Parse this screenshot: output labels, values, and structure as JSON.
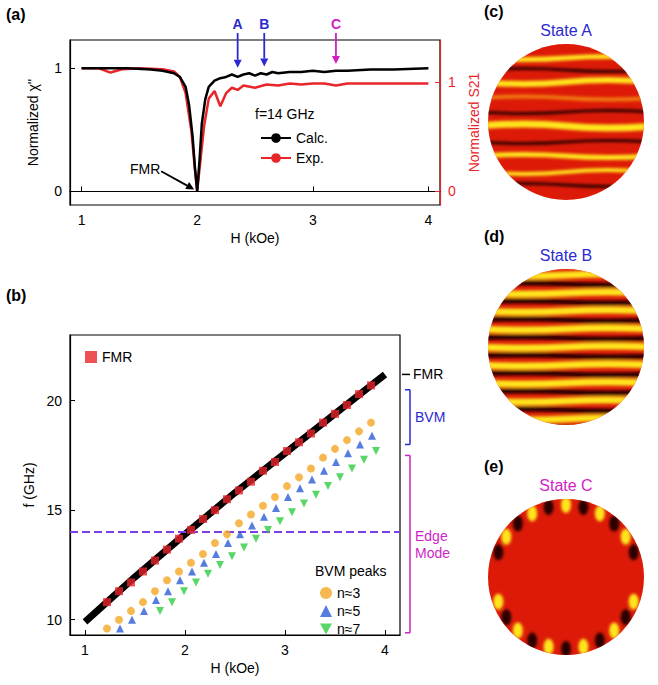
{
  "chart_data": [
    {
      "type": "line",
      "panel": "(a)",
      "x_label": "H (kOe)",
      "y_label": "Normalized χ''",
      "y2_label": "Normalized S21",
      "xlim": [
        0.9,
        4.1
      ],
      "xticks": [
        1,
        2,
        3,
        4
      ],
      "ylim": [
        -0.11,
        1.23
      ],
      "yticks": [
        0,
        1
      ],
      "y2lim": [
        -0.13,
        1.39
      ],
      "y2ticks": [
        0,
        1
      ],
      "legend": "inside",
      "legend_title": "f=14 GHz",
      "series": [
        {
          "name": "Calc.",
          "color": "#000000",
          "x": [
            1.0,
            1.2,
            1.4,
            1.6,
            1.7,
            1.8,
            1.85,
            1.9,
            1.93,
            1.96,
            1.98,
            2.0,
            2.02,
            2.04,
            2.07,
            2.1,
            2.15,
            2.2,
            2.25,
            2.3,
            2.35,
            2.4,
            2.45,
            2.5,
            2.55,
            2.6,
            2.65,
            2.7,
            2.8,
            2.9,
            3.0,
            3.1,
            3.2,
            3.3,
            3.5,
            3.7,
            4.0
          ],
          "values": [
            1.0,
            1.0,
            1.0,
            0.99,
            0.98,
            0.96,
            0.93,
            0.85,
            0.7,
            0.45,
            0.2,
            0.0,
            0.25,
            0.55,
            0.75,
            0.85,
            0.9,
            0.92,
            0.93,
            0.95,
            0.93,
            0.95,
            0.96,
            0.94,
            0.96,
            0.95,
            0.97,
            0.96,
            0.97,
            0.97,
            0.98,
            0.97,
            0.98,
            0.98,
            0.99,
            0.99,
            1.0
          ]
        },
        {
          "name": "Exp.",
          "color": "#e8262a",
          "axis": "y2",
          "x": [
            1.0,
            1.15,
            1.25,
            1.35,
            1.5,
            1.7,
            1.8,
            1.85,
            1.9,
            1.95,
            1.98,
            2.0,
            2.03,
            2.06,
            2.1,
            2.15,
            2.2,
            2.25,
            2.3,
            2.35,
            2.4,
            2.5,
            2.6,
            2.7,
            2.8,
            2.9,
            3.0,
            3.1,
            3.2,
            3.3,
            3.5,
            3.7,
            4.0
          ],
          "values": [
            1.13,
            1.13,
            1.09,
            1.12,
            1.13,
            1.12,
            1.1,
            1.05,
            0.9,
            0.55,
            0.2,
            0.0,
            0.3,
            0.6,
            0.85,
            0.92,
            0.78,
            0.9,
            0.95,
            0.93,
            0.97,
            0.95,
            0.98,
            0.97,
            0.99,
            0.98,
            0.99,
            0.99,
            0.97,
            0.99,
            0.99,
            0.99,
            0.99
          ]
        }
      ],
      "annotations": [
        {
          "text": "FMR",
          "x": 1.55,
          "y": 0.18,
          "arrow_to": [
            2.0,
            0.0
          ],
          "color": "#000000"
        },
        {
          "text": "A",
          "x": 2.35,
          "y": 0.98,
          "color": "#2a2ad0"
        },
        {
          "text": "B",
          "x": 2.58,
          "y": 0.99,
          "color": "#2a2ad0"
        },
        {
          "text": "C",
          "x": 3.2,
          "y": 1.01,
          "color": "#d11fc5"
        }
      ]
    },
    {
      "type": "scatter",
      "panel": "(b)",
      "x_label": "H (kOe)",
      "y_label": "f (GHz)",
      "xlim": [
        0.85,
        4.15
      ],
      "xticks": [
        1,
        2,
        3,
        4
      ],
      "ylim": [
        9.3,
        23
      ],
      "yticks": [
        10,
        15,
        20
      ],
      "legend": "inside",
      "legend_title": "BVM peaks",
      "series": [
        {
          "name": "FMR",
          "color": "#e8262a",
          "marker": "square",
          "x": [
            1.22,
            1.34,
            1.46,
            1.58,
            1.7,
            1.82,
            1.94,
            2.06,
            2.18,
            2.3,
            2.42,
            2.54,
            2.66,
            2.78,
            2.9,
            3.02,
            3.14,
            3.26,
            3.38,
            3.5,
            3.62,
            3.74,
            3.86
          ],
          "values": [
            10.8,
            11.3,
            11.7,
            12.2,
            12.7,
            13.2,
            13.7,
            14.1,
            14.6,
            15.0,
            15.5,
            15.9,
            16.3,
            16.8,
            17.2,
            17.7,
            18.1,
            18.5,
            19.0,
            19.4,
            19.8,
            20.3,
            20.7
          ]
        },
        {
          "name": "n≈3",
          "color": "#f5a623",
          "marker": "circle",
          "x": [
            1.22,
            1.34,
            1.46,
            1.58,
            1.7,
            1.82,
            1.94,
            2.06,
            2.18,
            2.3,
            2.42,
            2.54,
            2.66,
            2.78,
            2.9,
            3.02,
            3.14,
            3.26,
            3.38,
            3.5,
            3.62,
            3.74,
            3.86
          ],
          "values": [
            9.6,
            10.0,
            10.4,
            10.8,
            11.3,
            11.8,
            12.2,
            12.6,
            13.0,
            13.5,
            13.9,
            14.4,
            14.8,
            15.2,
            15.6,
            16.1,
            16.5,
            16.9,
            17.4,
            17.8,
            18.2,
            18.6,
            19.0
          ]
        },
        {
          "name": "n≈5",
          "color": "#2a5bd7",
          "marker": "triangle",
          "x": [
            1.35,
            1.47,
            1.59,
            1.71,
            1.83,
            1.95,
            2.07,
            2.19,
            2.31,
            2.43,
            2.55,
            2.67,
            2.79,
            2.91,
            3.03,
            3.15,
            3.27,
            3.39,
            3.51,
            3.63,
            3.75,
            3.87
          ],
          "values": [
            9.6,
            10.0,
            10.4,
            10.9,
            11.3,
            11.8,
            12.2,
            12.6,
            13.0,
            13.5,
            13.9,
            14.3,
            14.7,
            15.1,
            15.6,
            16.0,
            16.4,
            16.8,
            17.2,
            17.6,
            18.0,
            18.4
          ]
        },
        {
          "name": "n≈7",
          "color": "#2ecc40",
          "marker": "triangle_down",
          "x": [
            1.75,
            1.87,
            1.99,
            2.11,
            2.23,
            2.35,
            2.47,
            2.59,
            2.71,
            2.83,
            2.95,
            3.07,
            3.19,
            3.31,
            3.43,
            3.55,
            3.67,
            3.79,
            3.91
          ],
          "values": [
            10.4,
            10.8,
            11.3,
            11.7,
            12.1,
            12.5,
            12.9,
            13.3,
            13.7,
            14.1,
            14.5,
            14.9,
            15.3,
            15.7,
            16.1,
            16.5,
            16.9,
            17.3,
            17.7
          ]
        }
      ],
      "spectrum_lines": [
        {
          "label": "FMR",
          "color": "#000000",
          "x": [
            1.0,
            1.5,
            2.0,
            2.5,
            3.0,
            3.5,
            4.0
          ],
          "values": [
            9.9,
            11.95,
            13.9,
            15.8,
            17.6,
            19.4,
            21.2
          ]
        }
      ],
      "reference_lines": [
        {
          "y": 14,
          "color": "#7b3fe4",
          "line_style": "dashed"
        }
      ],
      "range_labels": [
        {
          "text": "BVM",
          "range": [
            18.0,
            20.5
          ],
          "color": "#2a2ad0"
        },
        {
          "text": "Edge Mode",
          "range": [
            9.4,
            17.5
          ],
          "color": "#d11fc5"
        }
      ]
    }
  ],
  "mode_images": [
    {
      "panel": "(c)",
      "title": "State A",
      "color": "#2a2ad0"
    },
    {
      "panel": "(d)",
      "title": "State B",
      "color": "#2a2ad0"
    },
    {
      "panel": "(e)",
      "title": "State C",
      "color": "#d11fc5"
    }
  ]
}
